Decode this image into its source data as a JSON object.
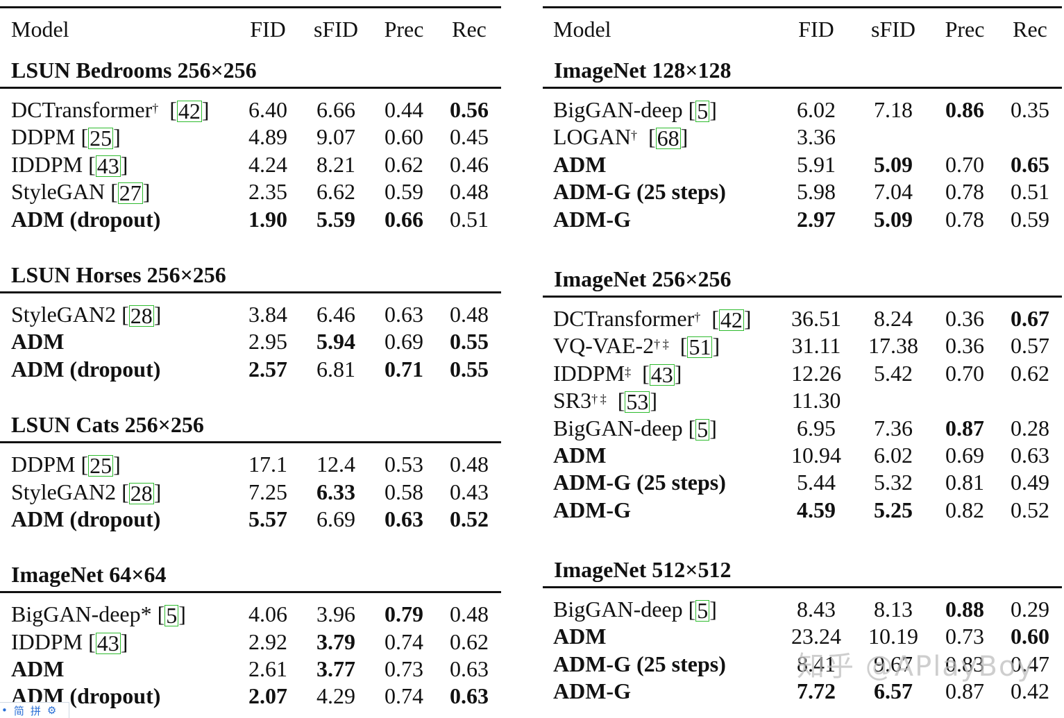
{
  "columns": [
    "Model",
    "FID",
    "sFID",
    "Prec",
    "Rec"
  ],
  "citation_color": "#2dbb2d",
  "left_table": {
    "sections": [
      {
        "title": "LSUN Bedrooms 256×256",
        "rows": [
          {
            "model": "DCTransformer",
            "sup": "†",
            "cite": "42",
            "model_bold": false,
            "fid": "6.40",
            "sfid": "6.66",
            "prec": "0.44",
            "rec": "0.56",
            "bold": [
              "rec"
            ]
          },
          {
            "model": "DDPM",
            "sup": "",
            "cite": "25",
            "model_bold": false,
            "fid": "4.89",
            "sfid": "9.07",
            "prec": "0.60",
            "rec": "0.45",
            "bold": []
          },
          {
            "model": "IDDPM",
            "sup": "",
            "cite": "43",
            "model_bold": false,
            "fid": "4.24",
            "sfid": "8.21",
            "prec": "0.62",
            "rec": "0.46",
            "bold": []
          },
          {
            "model": "StyleGAN",
            "sup": "",
            "cite": "27",
            "model_bold": false,
            "fid": "2.35",
            "sfid": "6.62",
            "prec": "0.59",
            "rec": "0.48",
            "bold": []
          },
          {
            "model": "ADM (dropout)",
            "sup": "",
            "cite": "",
            "model_bold": true,
            "fid": "1.90",
            "sfid": "5.59",
            "prec": "0.66",
            "rec": "0.51",
            "bold": [
              "fid",
              "sfid",
              "prec"
            ]
          }
        ]
      },
      {
        "title": "LSUN Horses 256×256",
        "rows": [
          {
            "model": "StyleGAN2",
            "sup": "",
            "cite": "28",
            "model_bold": false,
            "fid": "3.84",
            "sfid": "6.46",
            "prec": "0.63",
            "rec": "0.48",
            "bold": []
          },
          {
            "model": "ADM",
            "sup": "",
            "cite": "",
            "model_bold": true,
            "fid": "2.95",
            "sfid": "5.94",
            "prec": "0.69",
            "rec": "0.55",
            "bold": [
              "sfid",
              "rec"
            ]
          },
          {
            "model": "ADM (dropout)",
            "sup": "",
            "cite": "",
            "model_bold": true,
            "fid": "2.57",
            "sfid": "6.81",
            "prec": "0.71",
            "rec": "0.55",
            "bold": [
              "fid",
              "prec",
              "rec"
            ]
          }
        ]
      },
      {
        "title": "LSUN Cats 256×256",
        "rows": [
          {
            "model": "DDPM",
            "sup": "",
            "cite": "25",
            "model_bold": false,
            "fid": "17.1",
            "sfid": "12.4",
            "prec": "0.53",
            "rec": "0.48",
            "bold": []
          },
          {
            "model": "StyleGAN2",
            "sup": "",
            "cite": "28",
            "model_bold": false,
            "fid": "7.25",
            "sfid": "6.33",
            "prec": "0.58",
            "rec": "0.43",
            "bold": [
              "sfid"
            ]
          },
          {
            "model": "ADM (dropout)",
            "sup": "",
            "cite": "",
            "model_bold": true,
            "fid": "5.57",
            "sfid": "6.69",
            "prec": "0.63",
            "rec": "0.52",
            "bold": [
              "fid",
              "prec",
              "rec"
            ]
          }
        ]
      },
      {
        "title": "ImageNet 64×64",
        "rows": [
          {
            "model": "BigGAN-deep*",
            "sup": "",
            "cite": "5",
            "model_bold": false,
            "fid": "4.06",
            "sfid": "3.96",
            "prec": "0.79",
            "rec": "0.48",
            "bold": [
              "prec"
            ]
          },
          {
            "model": "IDDPM",
            "sup": "",
            "cite": "43",
            "model_bold": false,
            "fid": "2.92",
            "sfid": "3.79",
            "prec": "0.74",
            "rec": "0.62",
            "bold": [
              "sfid"
            ]
          },
          {
            "model": "ADM",
            "sup": "",
            "cite": "",
            "model_bold": true,
            "fid": "2.61",
            "sfid": "3.77",
            "prec": "0.73",
            "rec": "0.63",
            "bold": [
              "sfid"
            ]
          },
          {
            "model": "ADM (dropout)",
            "sup": "",
            "cite": "",
            "model_bold": true,
            "fid": "2.07",
            "sfid": "4.29",
            "prec": "0.74",
            "rec": "0.63",
            "bold": [
              "fid",
              "rec"
            ]
          }
        ]
      }
    ]
  },
  "right_table": {
    "sections": [
      {
        "title": "ImageNet 128×128",
        "rows": [
          {
            "model": "BigGAN-deep",
            "sup": "",
            "cite": "5",
            "model_bold": false,
            "fid": "6.02",
            "sfid": "7.18",
            "prec": "0.86",
            "rec": "0.35",
            "bold": [
              "prec"
            ]
          },
          {
            "model": "LOGAN",
            "sup": "†",
            "cite": "68",
            "model_bold": false,
            "fid": "3.36",
            "sfid": "",
            "prec": "",
            "rec": "",
            "bold": []
          },
          {
            "model": "ADM",
            "sup": "",
            "cite": "",
            "model_bold": true,
            "fid": "5.91",
            "sfid": "5.09",
            "prec": "0.70",
            "rec": "0.65",
            "bold": [
              "sfid",
              "rec"
            ]
          },
          {
            "model": "ADM-G (25 steps)",
            "sup": "",
            "cite": "",
            "model_bold": true,
            "fid": "5.98",
            "sfid": "7.04",
            "prec": "0.78",
            "rec": "0.51",
            "bold": []
          },
          {
            "model": "ADM-G",
            "sup": "",
            "cite": "",
            "model_bold": true,
            "fid": "2.97",
            "sfid": "5.09",
            "prec": "0.78",
            "rec": "0.59",
            "bold": [
              "fid",
              "sfid"
            ]
          }
        ]
      },
      {
        "title": "ImageNet 256×256",
        "rows": [
          {
            "model": "DCTransformer",
            "sup": "†",
            "cite": "42",
            "model_bold": false,
            "fid": "36.51",
            "sfid": "8.24",
            "prec": "0.36",
            "rec": "0.67",
            "bold": [
              "rec"
            ]
          },
          {
            "model": "VQ-VAE-2",
            "sup": "† ‡",
            "cite": "51",
            "model_bold": false,
            "fid": "31.11",
            "sfid": "17.38",
            "prec": "0.36",
            "rec": "0.57",
            "bold": []
          },
          {
            "model": "IDDPM",
            "sup": "‡",
            "cite": "43",
            "model_bold": false,
            "fid": "12.26",
            "sfid": "5.42",
            "prec": "0.70",
            "rec": "0.62",
            "bold": []
          },
          {
            "model": "SR3",
            "sup": "† ‡",
            "cite": "53",
            "model_bold": false,
            "fid": "11.30",
            "sfid": "",
            "prec": "",
            "rec": "",
            "bold": []
          },
          {
            "model": "BigGAN-deep",
            "sup": "",
            "cite": "5",
            "model_bold": false,
            "fid": "6.95",
            "sfid": "7.36",
            "prec": "0.87",
            "rec": "0.28",
            "bold": [
              "prec"
            ]
          },
          {
            "model": "ADM",
            "sup": "",
            "cite": "",
            "model_bold": true,
            "fid": "10.94",
            "sfid": "6.02",
            "prec": "0.69",
            "rec": "0.63",
            "bold": []
          },
          {
            "model": "ADM-G (25 steps)",
            "sup": "",
            "cite": "",
            "model_bold": true,
            "fid": "5.44",
            "sfid": "5.32",
            "prec": "0.81",
            "rec": "0.49",
            "bold": []
          },
          {
            "model": "ADM-G",
            "sup": "",
            "cite": "",
            "model_bold": true,
            "fid": "4.59",
            "sfid": "5.25",
            "prec": "0.82",
            "rec": "0.52",
            "bold": [
              "fid",
              "sfid"
            ]
          }
        ]
      },
      {
        "title": "ImageNet 512×512",
        "rows": [
          {
            "model": "BigGAN-deep",
            "sup": "",
            "cite": "5",
            "model_bold": false,
            "fid": "8.43",
            "sfid": "8.13",
            "prec": "0.88",
            "rec": "0.29",
            "bold": [
              "prec"
            ]
          },
          {
            "model": "ADM",
            "sup": "",
            "cite": "",
            "model_bold": true,
            "fid": "23.24",
            "sfid": "10.19",
            "prec": "0.73",
            "rec": "0.60",
            "bold": [
              "rec"
            ]
          },
          {
            "model": "ADM-G (25 steps)",
            "sup": "",
            "cite": "",
            "model_bold": true,
            "fid": "8.41",
            "sfid": "9.67",
            "prec": "0.83",
            "rec": "0.47",
            "bold": []
          },
          {
            "model": "ADM-G",
            "sup": "",
            "cite": "",
            "model_bold": true,
            "fid": "7.72",
            "sfid": "6.57",
            "prec": "0.87",
            "rec": "0.42",
            "bold": [
              "fid",
              "sfid"
            ]
          }
        ]
      }
    ]
  },
  "watermark": {
    "text": "知乎 @APlayBoy"
  },
  "ime_toolbar": {
    "dot": "•",
    "simplified": "简",
    "pinyin": "拼",
    "settings_icon": "⚙"
  }
}
